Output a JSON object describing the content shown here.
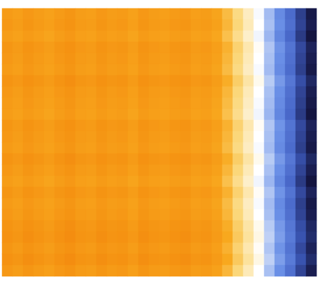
{
  "chart_data": {
    "type": "heatmap",
    "tick_labels": false,
    "grid": false,
    "zlim": [
      0,
      100
    ],
    "values": [
      [
        19,
        21,
        18,
        20,
        22,
        19,
        17,
        20,
        21,
        18,
        20,
        19,
        22,
        18,
        20,
        21,
        19,
        18,
        21,
        20,
        23,
        29,
        36,
        43,
        51,
        63,
        73,
        81,
        91,
        99
      ],
      [
        18,
        20,
        17,
        19,
        21,
        18,
        16,
        19,
        20,
        17,
        19,
        18,
        21,
        17,
        19,
        20,
        18,
        17,
        20,
        19,
        22,
        28,
        35,
        42,
        50,
        62,
        72,
        80,
        90,
        98
      ],
      [
        20,
        22,
        19,
        21,
        23,
        20,
        18,
        21,
        22,
        19,
        21,
        20,
        23,
        19,
        21,
        22,
        20,
        19,
        22,
        21,
        24,
        30,
        37,
        44,
        52,
        64,
        74,
        82,
        92,
        100
      ],
      [
        17,
        19,
        16,
        18,
        20,
        17,
        15,
        18,
        19,
        16,
        18,
        17,
        20,
        16,
        18,
        19,
        17,
        16,
        19,
        18,
        21,
        27,
        34,
        41,
        49,
        61,
        71,
        79,
        89,
        97
      ],
      [
        18,
        20,
        17,
        19,
        21,
        18,
        16,
        19,
        20,
        17,
        19,
        18,
        21,
        17,
        19,
        20,
        18,
        17,
        20,
        19,
        22,
        28,
        35,
        42,
        50,
        62,
        72,
        80,
        90,
        98
      ],
      [
        19,
        21,
        18,
        20,
        22,
        19,
        17,
        20,
        21,
        18,
        20,
        19,
        22,
        18,
        20,
        21,
        19,
        18,
        21,
        20,
        23,
        29,
        36,
        43,
        51,
        63,
        73,
        81,
        91,
        99
      ],
      [
        16,
        18,
        15,
        17,
        19,
        16,
        14,
        17,
        18,
        15,
        17,
        16,
        19,
        15,
        17,
        18,
        16,
        15,
        18,
        17,
        20,
        26,
        33,
        40,
        48,
        60,
        70,
        78,
        88,
        96
      ],
      [
        18,
        20,
        17,
        19,
        21,
        18,
        16,
        19,
        20,
        17,
        19,
        18,
        21,
        17,
        19,
        20,
        18,
        17,
        20,
        19,
        22,
        28,
        35,
        42,
        50,
        62,
        72,
        80,
        90,
        98
      ],
      [
        19,
        21,
        18,
        20,
        22,
        19,
        17,
        20,
        21,
        18,
        20,
        19,
        22,
        18,
        20,
        21,
        19,
        18,
        21,
        20,
        23,
        29,
        36,
        43,
        51,
        63,
        73,
        81,
        91,
        99
      ],
      [
        20,
        22,
        19,
        21,
        23,
        20,
        18,
        21,
        22,
        19,
        21,
        20,
        23,
        19,
        21,
        22,
        20,
        19,
        22,
        21,
        24,
        30,
        37,
        44,
        52,
        64,
        74,
        82,
        92,
        100
      ],
      [
        17,
        19,
        16,
        18,
        20,
        17,
        15,
        18,
        19,
        16,
        18,
        17,
        20,
        16,
        18,
        19,
        17,
        16,
        19,
        18,
        21,
        27,
        34,
        41,
        49,
        61,
        71,
        79,
        89,
        97
      ],
      [
        18,
        20,
        17,
        19,
        21,
        18,
        16,
        19,
        20,
        17,
        19,
        18,
        21,
        17,
        19,
        20,
        18,
        17,
        20,
        19,
        22,
        28,
        35,
        42,
        50,
        62,
        72,
        80,
        90,
        98
      ],
      [
        19,
        21,
        18,
        20,
        22,
        19,
        17,
        20,
        21,
        18,
        20,
        19,
        22,
        18,
        20,
        21,
        19,
        18,
        21,
        20,
        23,
        29,
        36,
        43,
        51,
        63,
        73,
        81,
        91,
        99
      ],
      [
        16,
        18,
        15,
        17,
        19,
        16,
        14,
        17,
        18,
        15,
        17,
        16,
        19,
        15,
        17,
        18,
        16,
        15,
        18,
        17,
        20,
        26,
        33,
        40,
        48,
        60,
        70,
        78,
        88,
        96
      ],
      [
        18,
        20,
        17,
        19,
        21,
        18,
        16,
        19,
        20,
        17,
        19,
        18,
        21,
        17,
        19,
        20,
        18,
        17,
        20,
        19,
        22,
        28,
        35,
        42,
        50,
        62,
        72,
        80,
        90,
        98
      ],
      [
        20,
        22,
        19,
        21,
        23,
        20,
        18,
        21,
        22,
        19,
        21,
        20,
        23,
        19,
        21,
        22,
        20,
        19,
        22,
        21,
        24,
        30,
        37,
        44,
        52,
        64,
        74,
        82,
        92,
        100
      ],
      [
        17,
        19,
        16,
        18,
        20,
        17,
        15,
        18,
        19,
        16,
        18,
        17,
        20,
        16,
        18,
        19,
        17,
        16,
        19,
        18,
        21,
        27,
        34,
        41,
        49,
        61,
        71,
        79,
        89,
        97
      ],
      [
        19,
        21,
        18,
        20,
        22,
        19,
        17,
        20,
        21,
        18,
        20,
        19,
        22,
        18,
        20,
        21,
        19,
        18,
        21,
        20,
        23,
        29,
        36,
        43,
        51,
        63,
        73,
        81,
        91,
        99
      ],
      [
        18,
        20,
        17,
        19,
        21,
        18,
        16,
        19,
        20,
        17,
        19,
        18,
        21,
        17,
        19,
        20,
        18,
        17,
        20,
        19,
        22,
        28,
        35,
        42,
        50,
        62,
        72,
        80,
        90,
        98
      ],
      [
        16,
        18,
        15,
        17,
        19,
        16,
        14,
        17,
        18,
        15,
        17,
        16,
        19,
        15,
        17,
        18,
        16,
        15,
        18,
        17,
        20,
        26,
        33,
        40,
        48,
        60,
        70,
        78,
        88,
        96
      ],
      [
        15,
        17,
        14,
        16,
        18,
        15,
        13,
        16,
        17,
        14,
        16,
        15,
        18,
        14,
        16,
        17,
        15,
        14,
        17,
        16,
        19,
        25,
        32,
        39,
        47,
        59,
        69,
        77,
        87,
        95
      ],
      [
        17,
        19,
        16,
        18,
        20,
        17,
        15,
        18,
        19,
        16,
        18,
        17,
        20,
        16,
        18,
        19,
        17,
        16,
        19,
        18,
        21,
        27,
        34,
        41,
        49,
        61,
        71,
        79,
        89,
        97
      ],
      [
        15,
        17,
        14,
        16,
        18,
        15,
        13,
        16,
        17,
        14,
        16,
        15,
        18,
        14,
        16,
        17,
        15,
        14,
        17,
        16,
        19,
        25,
        32,
        39,
        47,
        59,
        69,
        77,
        87,
        95
      ],
      [
        18,
        20,
        17,
        19,
        21,
        18,
        16,
        19,
        20,
        17,
        19,
        18,
        21,
        17,
        19,
        20,
        18,
        17,
        20,
        19,
        22,
        28,
        35,
        42,
        50,
        62,
        72,
        80,
        90,
        98
      ]
    ]
  }
}
